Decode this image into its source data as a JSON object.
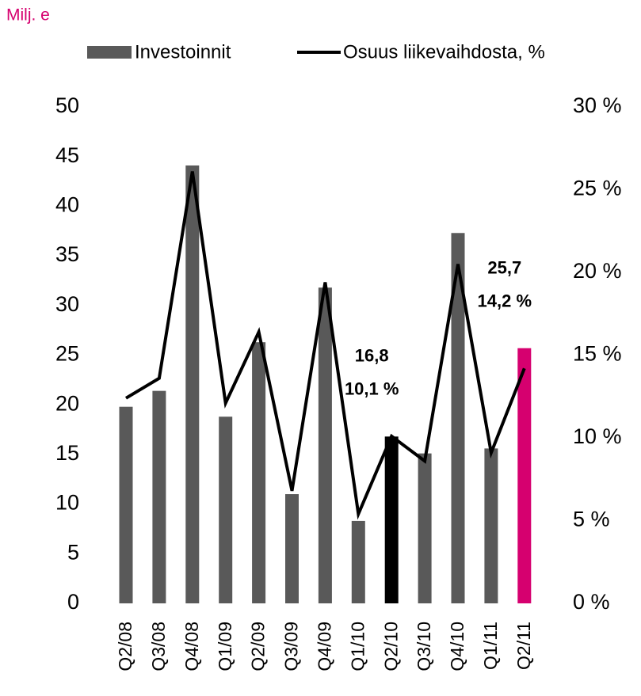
{
  "chart_data": {
    "type": "bar_line",
    "unit_label": "Milj. e",
    "categories": [
      "Q2/08",
      "Q3/08",
      "Q4/08",
      "Q1/09",
      "Q2/09",
      "Q3/09",
      "Q4/09",
      "Q1/10",
      "Q2/10",
      "Q3/10",
      "Q4/10",
      "Q1/11",
      "Q2/11"
    ],
    "series": [
      {
        "name": "Investoinnit",
        "type": "bar",
        "color": "#595959",
        "colors": [
          "#595959",
          "#595959",
          "#595959",
          "#595959",
          "#595959",
          "#595959",
          "#595959",
          "#595959",
          "#000000",
          "#595959",
          "#595959",
          "#595959",
          "#d6006f"
        ],
        "values": [
          19.8,
          21.4,
          44.1,
          18.8,
          26.3,
          11.0,
          31.8,
          8.3,
          16.8,
          15.1,
          37.3,
          15.6,
          25.7
        ],
        "value_labels": [
          null,
          null,
          null,
          null,
          null,
          null,
          null,
          null,
          "16,8",
          null,
          null,
          null,
          "25,7"
        ]
      },
      {
        "name": "Osuus liikevaihdosta, %",
        "type": "line",
        "axis": "y2",
        "color": "#000000",
        "values": [
          12.4,
          13.6,
          26.1,
          12.1,
          16.4,
          6.8,
          19.4,
          5.4,
          10.1,
          8.6,
          20.5,
          9.1,
          14.2
        ],
        "value_labels": [
          null,
          null,
          null,
          null,
          null,
          null,
          null,
          null,
          "10,1 %",
          null,
          null,
          null,
          "14,2 %"
        ]
      }
    ],
    "ylim": [
      0,
      50
    ],
    "yticks": [
      0,
      5,
      10,
      15,
      20,
      25,
      30,
      35,
      40,
      45,
      50
    ],
    "y2lim": [
      0,
      30
    ],
    "y2ticks": [
      {
        "value": 0,
        "label": "0 %"
      },
      {
        "value": 5,
        "label": "5 %"
      },
      {
        "value": 10,
        "label": "10 %"
      },
      {
        "value": 15,
        "label": "15 %"
      },
      {
        "value": 20,
        "label": "20 %"
      },
      {
        "value": 25,
        "label": "25 %"
      },
      {
        "value": 30,
        "label": "30 %"
      }
    ],
    "unit_color": "#d6006f"
  }
}
